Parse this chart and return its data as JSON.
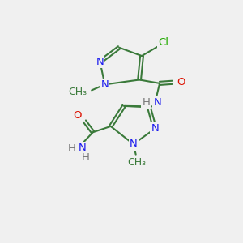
{
  "bg_color": "#f0f0f0",
  "bond_color": "#3a7a3a",
  "N_color": "#1a1aee",
  "O_color": "#dd1100",
  "Cl_color": "#22aa00",
  "H_color": "#777777",
  "line_width": 1.5,
  "font_size": 9.5,
  "figsize": [
    3.0,
    3.0
  ],
  "dpi": 100,
  "xlim": [
    0,
    10
  ],
  "ylim": [
    0,
    10
  ]
}
